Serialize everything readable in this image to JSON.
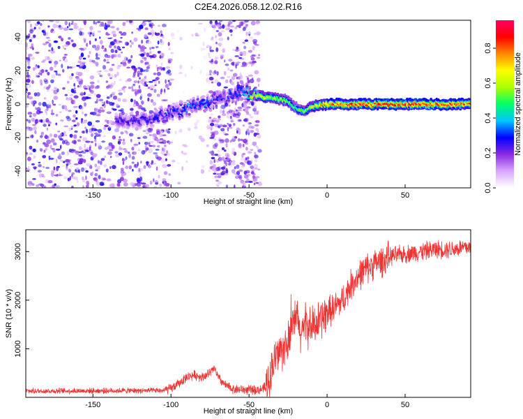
{
  "chart_data": [
    {
      "type": "heatmap",
      "title": "C2E4.2026.058.12.02.R16",
      "xlabel": "Height of straight line (km)",
      "ylabel": "Frequency (Hz)",
      "xlim": [
        -193,
        92
      ],
      "ylim": [
        -50,
        50
      ],
      "x_ticks": [
        -150,
        -100,
        -50,
        0,
        50
      ],
      "y_ticks": [
        -40,
        -20,
        0,
        20,
        40
      ],
      "colorbar": {
        "label": "Normalized spectral amplitude",
        "range": [
          0.0,
          0.96
        ],
        "ticks": [
          0.0,
          0.2,
          0.4,
          0.6,
          0.8
        ],
        "tick_labels": [
          "0.0",
          "0.2",
          "0.4",
          "0.6",
          "0.8"
        ],
        "colormap": [
          "#ffffff",
          "#d9a6ff",
          "#8a2be2",
          "#0000ff",
          "#00c8ff",
          "#00ff66",
          "#aaff00",
          "#ffff00",
          "#ff8800",
          "#ff0000",
          "#ff0066"
        ]
      },
      "ridge": {
        "x": [
          -130,
          -110,
          -95,
          -80,
          -65,
          -55,
          -45,
          -35,
          -25,
          -20,
          -15,
          -8,
          0,
          10,
          20,
          40,
          60,
          80,
          92
        ],
        "y": [
          -10,
          -8,
          -4,
          0,
          4,
          8,
          5,
          4,
          2,
          -2,
          -4,
          -1,
          0,
          0,
          0,
          0,
          0,
          0,
          0
        ],
        "amplitude": [
          0.25,
          0.28,
          0.33,
          0.35,
          0.3,
          0.3,
          0.65,
          0.6,
          0.55,
          0.5,
          0.55,
          0.65,
          0.78,
          0.8,
          0.82,
          0.85,
          0.85,
          0.83,
          0.8
        ]
      }
    },
    {
      "type": "line",
      "xlabel": "Height of straight line (km)",
      "ylabel": "SNR (10 * v/v)",
      "xlim": [
        -193,
        92
      ],
      "ylim": [
        0,
        3450
      ],
      "x_ticks": [
        -150,
        -100,
        -50,
        0,
        50
      ],
      "y_ticks": [
        1000,
        2000,
        3000
      ],
      "series": [
        {
          "name": "SNR",
          "color": "#ee3333",
          "x": [
            -193,
            -150,
            -105,
            -100,
            -95,
            -90,
            -85,
            -80,
            -75,
            -72,
            -70,
            -65,
            -60,
            -50,
            -42,
            -38,
            -35,
            -32,
            -28,
            -24,
            -20,
            -17,
            -14,
            -10,
            -5,
            0,
            5,
            10,
            15,
            20,
            25,
            30,
            35,
            40,
            50,
            60,
            70,
            80,
            92
          ],
          "y": [
            130,
            135,
            140,
            180,
            280,
            420,
            460,
            420,
            500,
            600,
            420,
            240,
            170,
            150,
            160,
            260,
            650,
            900,
            1000,
            1150,
            1700,
            1300,
            1500,
            1450,
            1550,
            1750,
            1850,
            2000,
            2300,
            2500,
            2650,
            2750,
            2800,
            2900,
            2950,
            3000,
            3050,
            3050,
            3100
          ]
        }
      ]
    }
  ]
}
